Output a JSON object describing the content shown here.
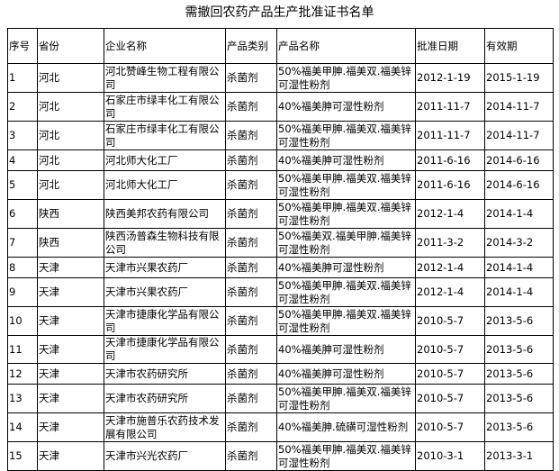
{
  "title": "需撤回农药产品生产批准证书名单",
  "headers": [
    "序号",
    "省份",
    "企业名称",
    "产品类别",
    "产品名称",
    "批准日期",
    "有效期"
  ],
  "rows": [
    [
      "1",
      "河北",
      "河北赞峰生物工程有限公司",
      "杀菌剂",
      "50%福美甲胂.福美双.福美锌可湿性粉剂",
      "2012-1-19",
      "2015-1-19"
    ],
    [
      "2",
      "河北",
      "石家庄市绿丰化工有限公司",
      "杀菌剂",
      "40%福美胂可湿性粉剂",
      "2011-11-7",
      "2014-11-7"
    ],
    [
      "3",
      "河北",
      "石家庄市绿丰化工有限公司",
      "杀菌剂",
      "50%福美甲胂.福美双.福美锌可湿性粉剂",
      "2011-11-7",
      "2014-11-7"
    ],
    [
      "4",
      "河北",
      "河北师大化工厂",
      "杀菌剂",
      "40%福美胂可湿性粉剂",
      "2011-6-16",
      "2014-6-16"
    ],
    [
      "5",
      "河北",
      "河北师大化工厂",
      "杀菌剂",
      "50%福美甲胂.福美双.福美锌可湿性粉剂",
      "2011-6-16",
      "2014-6-16"
    ],
    [
      "6",
      "陕西",
      "陕西美邦农药有限公司",
      "杀菌剂",
      "50%福美甲胂.福美双.福美锌可湿性粉剂",
      "2012-1-4",
      "2014-1-4"
    ],
    [
      "7",
      "陕西",
      "陕西汤普森生物科技有限公司",
      "杀菌剂",
      "50%福美双.福美甲胂.福美锌可湿性粉剂",
      "2011-3-2",
      "2014-3-2"
    ],
    [
      "8",
      "天津",
      "天津市兴果农药厂",
      "杀菌剂",
      "40%福美胂可湿性粉剂",
      "2012-1-4",
      "2014-1-4"
    ],
    [
      "9",
      "天津",
      "天津市兴果农药厂",
      "杀菌剂",
      "50%福美甲胂.福美双.福美锌可湿性粉剂",
      "2012-1-4",
      "2014-1-4"
    ],
    [
      "10",
      "天津",
      "天津市捷康化学品有限公司",
      "杀菌剂",
      "50%福美甲胂.福美双.福美锌可湿性粉剂",
      "2010-5-7",
      "2013-5-6"
    ],
    [
      "11",
      "天津",
      "天津市捷康化学品有限公司",
      "杀菌剂",
      "40%福美胂可湿性粉剂",
      "2010-5-7",
      "2013-5-6"
    ],
    [
      "12",
      "天津",
      "天津市农药研究所",
      "杀菌剂",
      "40%福美胂可湿性粉剂",
      "2010-5-7",
      "2013-5-6"
    ],
    [
      "13",
      "天津",
      "天津市农药研究所",
      "杀菌剂",
      "50%福美甲胂.福美双.福美锌可湿性粉剂",
      "2010-5-7",
      "2013-5-6"
    ],
    [
      "14",
      "天津",
      "天津市施普乐农药技术发展有限公司",
      "杀菌剂",
      "40%福美胂.硫磺可湿性粉剂",
      "2010-5-7",
      "2013-5-6"
    ],
    [
      "15",
      "天津",
      "天津市兴光农药厂",
      "杀菌剂",
      "50%福美甲胂.福美双.福美锌可湿性粉剂",
      "2010-3-1",
      "2013-3-1"
    ]
  ]
}
